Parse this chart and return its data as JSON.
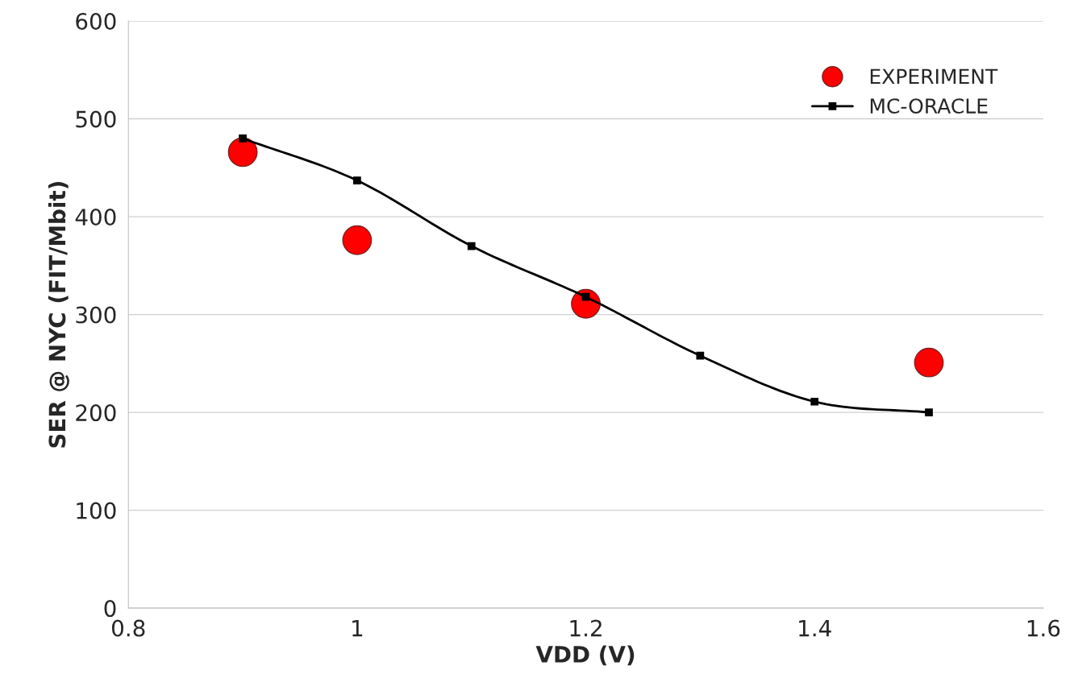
{
  "chart_data": {
    "type": "scatter",
    "xlabel": "VDD (V)",
    "ylabel": "SER @ NYC (FIT/Mbit)",
    "xlim": [
      0.8,
      1.6
    ],
    "xticks": [
      0.8,
      1,
      1.2,
      1.4,
      1.6
    ],
    "ylim": [
      0,
      600
    ],
    "yticks": [
      0,
      100,
      200,
      300,
      400,
      500,
      600
    ],
    "grid": "y",
    "legend": "top right",
    "series": [
      {
        "name": "EXPERIMENT",
        "color": "#ff0000",
        "marker": "circle",
        "x": [
          0.9,
          1.0,
          1.2,
          1.5
        ],
        "values": [
          466,
          376,
          311,
          251
        ]
      },
      {
        "name": "MC-ORACLE",
        "type": "line",
        "color": "#000000",
        "marker": "square",
        "line_style": "solid",
        "x": [
          0.9,
          1.0,
          1.1,
          1.2,
          1.3,
          1.4,
          1.5
        ],
        "values": [
          480,
          437,
          370,
          318,
          258,
          211,
          200
        ]
      }
    ]
  }
}
